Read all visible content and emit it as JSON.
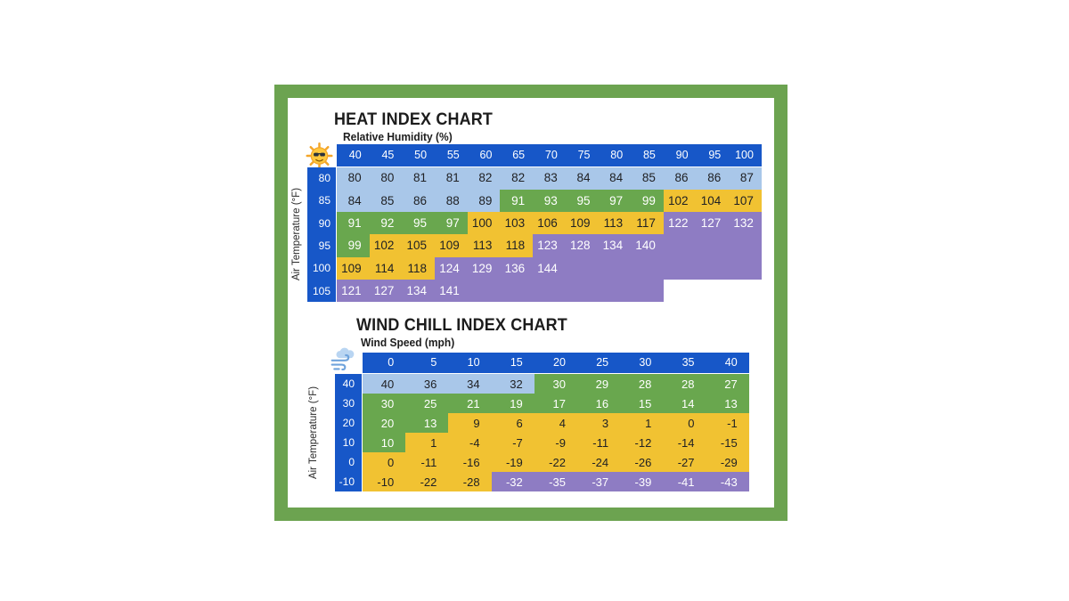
{
  "frame": {
    "color": "#6CA350"
  },
  "colors": {
    "header_blue": "#1757C8",
    "light_blue": "#A9C7E9",
    "green": "#69A74E",
    "yellow": "#F1C232",
    "purple": "#8E7CC3",
    "text_dark": "#202124",
    "text_light": "#FFFFFF"
  },
  "heat_chart": {
    "title": "HEAT INDEX CHART",
    "subtitle": "Relative Humidity (%)",
    "y_axis_label": "Air Temperature (°F)",
    "corner_icon": "sun-with-sunglasses",
    "col_headers": [
      "40",
      "45",
      "50",
      "55",
      "60",
      "65",
      "70",
      "75",
      "80",
      "85",
      "90",
      "95",
      "100"
    ],
    "rows": [
      {
        "header": "80",
        "cells": [
          [
            "80",
            "lb"
          ],
          [
            "80",
            "lb"
          ],
          [
            "81",
            "lb"
          ],
          [
            "81",
            "lb"
          ],
          [
            "82",
            "lb"
          ],
          [
            "82",
            "lb"
          ],
          [
            "83",
            "lb"
          ],
          [
            "84",
            "lb"
          ],
          [
            "84",
            "lb"
          ],
          [
            "85",
            "lb"
          ],
          [
            "86",
            "lb"
          ],
          [
            "86",
            "lb"
          ],
          [
            "87",
            "lb"
          ]
        ]
      },
      {
        "header": "85",
        "cells": [
          [
            "84",
            "lb"
          ],
          [
            "85",
            "lb"
          ],
          [
            "86",
            "lb"
          ],
          [
            "88",
            "lb"
          ],
          [
            "89",
            "lb"
          ],
          [
            "91",
            "gr"
          ],
          [
            "93",
            "gr"
          ],
          [
            "95",
            "gr"
          ],
          [
            "97",
            "gr"
          ],
          [
            "99",
            "gr"
          ],
          [
            "102",
            "yl"
          ],
          [
            "104",
            "yl"
          ],
          [
            "107",
            "yl"
          ]
        ]
      },
      {
        "header": "90",
        "cells": [
          [
            "91",
            "gr"
          ],
          [
            "92",
            "gr"
          ],
          [
            "95",
            "gr"
          ],
          [
            "97",
            "gr"
          ],
          [
            "100",
            "yl"
          ],
          [
            "103",
            "yl"
          ],
          [
            "106",
            "yl"
          ],
          [
            "109",
            "yl"
          ],
          [
            "113",
            "yl"
          ],
          [
            "117",
            "yl"
          ],
          [
            "122",
            "pu"
          ],
          [
            "127",
            "pu"
          ],
          [
            "132",
            "pu"
          ]
        ]
      },
      {
        "header": "95",
        "cells": [
          [
            "99",
            "gr"
          ],
          [
            "102",
            "yl"
          ],
          [
            "105",
            "yl"
          ],
          [
            "109",
            "yl"
          ],
          [
            "113",
            "yl"
          ],
          [
            "118",
            "yl"
          ],
          [
            "123",
            "pu"
          ],
          [
            "128",
            "pu"
          ],
          [
            "134",
            "pu"
          ],
          [
            "140",
            "pu"
          ],
          [
            "",
            "pu"
          ],
          [
            "",
            "pu"
          ],
          [
            "",
            "pu"
          ]
        ]
      },
      {
        "header": "100",
        "cells": [
          [
            "109",
            "yl"
          ],
          [
            "114",
            "yl"
          ],
          [
            "118",
            "yl"
          ],
          [
            "124",
            "pu"
          ],
          [
            "129",
            "pu"
          ],
          [
            "136",
            "pu"
          ],
          [
            "144",
            "pu"
          ],
          [
            "",
            "pu"
          ],
          [
            "",
            "pu"
          ],
          [
            "",
            "pu"
          ],
          [
            "",
            "pu"
          ],
          [
            "",
            "pu"
          ],
          [
            "",
            "pu"
          ]
        ]
      },
      {
        "header": "105",
        "cells": [
          [
            "121",
            "pu"
          ],
          [
            "127",
            "pu"
          ],
          [
            "134",
            "pu"
          ],
          [
            "141",
            "pu"
          ],
          [
            "",
            "pu"
          ],
          [
            "",
            "pu"
          ],
          [
            "",
            "pu"
          ],
          [
            "",
            "pu"
          ],
          [
            "",
            "pu"
          ],
          [
            "",
            "pu"
          ],
          [
            "",
            "no"
          ],
          [
            "",
            "no"
          ],
          [
            "",
            "no"
          ]
        ]
      }
    ]
  },
  "wind_chart": {
    "title": "WIND CHILL INDEX CHART",
    "subtitle": "Wind Speed (mph)",
    "y_axis_label": "Air Temperature (°F)",
    "corner_icon": "wind-blowing-cloud",
    "col_headers": [
      "0",
      "5",
      "10",
      "15",
      "20",
      "25",
      "30",
      "35",
      "40"
    ],
    "rows": [
      {
        "header": "40",
        "cells": [
          [
            "40",
            "lb"
          ],
          [
            "36",
            "lb"
          ],
          [
            "34",
            "lb"
          ],
          [
            "32",
            "lb"
          ],
          [
            "30",
            "gr"
          ],
          [
            "29",
            "gr"
          ],
          [
            "28",
            "gr"
          ],
          [
            "28",
            "gr"
          ],
          [
            "27",
            "gr"
          ]
        ]
      },
      {
        "header": "30",
        "cells": [
          [
            "30",
            "gr"
          ],
          [
            "25",
            "gr"
          ],
          [
            "21",
            "gr"
          ],
          [
            "19",
            "gr"
          ],
          [
            "17",
            "gr"
          ],
          [
            "16",
            "gr"
          ],
          [
            "15",
            "gr"
          ],
          [
            "14",
            "gr"
          ],
          [
            "13",
            "gr"
          ]
        ]
      },
      {
        "header": "20",
        "cells": [
          [
            "20",
            "gr"
          ],
          [
            "13",
            "gr"
          ],
          [
            "9",
            "yl"
          ],
          [
            "6",
            "yl"
          ],
          [
            "4",
            "yl"
          ],
          [
            "3",
            "yl"
          ],
          [
            "1",
            "yl"
          ],
          [
            "0",
            "yl"
          ],
          [
            "-1",
            "yl"
          ]
        ]
      },
      {
        "header": "10",
        "cells": [
          [
            "10",
            "gr"
          ],
          [
            "1",
            "yl"
          ],
          [
            "-4",
            "yl"
          ],
          [
            "-7",
            "yl"
          ],
          [
            "-9",
            "yl"
          ],
          [
            "-11",
            "yl"
          ],
          [
            "-12",
            "yl"
          ],
          [
            "-14",
            "yl"
          ],
          [
            "-15",
            "yl"
          ]
        ]
      },
      {
        "header": "0",
        "cells": [
          [
            "0",
            "yl"
          ],
          [
            "-11",
            "yl"
          ],
          [
            "-16",
            "yl"
          ],
          [
            "-19",
            "yl"
          ],
          [
            "-22",
            "yl"
          ],
          [
            "-24",
            "yl"
          ],
          [
            "-26",
            "yl"
          ],
          [
            "-27",
            "yl"
          ],
          [
            "-29",
            "yl"
          ]
        ]
      },
      {
        "header": "-10",
        "cells": [
          [
            "-10",
            "yl"
          ],
          [
            "-22",
            "yl"
          ],
          [
            "-28",
            "yl"
          ],
          [
            "-32",
            "pu"
          ],
          [
            "-35",
            "pu"
          ],
          [
            "-37",
            "pu"
          ],
          [
            "-39",
            "pu"
          ],
          [
            "-41",
            "pu"
          ],
          [
            "-43",
            "pu"
          ]
        ]
      }
    ]
  },
  "chart_data": [
    {
      "type": "heatmap",
      "title": "HEAT INDEX CHART",
      "xlabel": "Relative Humidity (%)",
      "ylabel": "Air Temperature (°F)",
      "x": [
        40,
        45,
        50,
        55,
        60,
        65,
        70,
        75,
        80,
        85,
        90,
        95,
        100
      ],
      "y": [
        80,
        85,
        90,
        95,
        100,
        105
      ],
      "values": [
        [
          80,
          80,
          81,
          81,
          82,
          82,
          83,
          84,
          84,
          85,
          86,
          86,
          87
        ],
        [
          84,
          85,
          86,
          88,
          89,
          91,
          93,
          95,
          97,
          99,
          102,
          104,
          107
        ],
        [
          91,
          92,
          95,
          97,
          100,
          103,
          106,
          109,
          113,
          117,
          122,
          127,
          132
        ],
        [
          99,
          102,
          105,
          109,
          113,
          118,
          123,
          128,
          134,
          140,
          null,
          null,
          null
        ],
        [
          109,
          114,
          118,
          124,
          129,
          136,
          144,
          null,
          null,
          null,
          null,
          null,
          null
        ],
        [
          121,
          127,
          134,
          141,
          null,
          null,
          null,
          null,
          null,
          null,
          null,
          null,
          null
        ]
      ],
      "grid": false,
      "legend": false
    },
    {
      "type": "heatmap",
      "title": "WIND CHILL INDEX CHART",
      "xlabel": "Wind Speed (mph)",
      "ylabel": "Air Temperature (°F)",
      "x": [
        0,
        5,
        10,
        15,
        20,
        25,
        30,
        35,
        40
      ],
      "y": [
        40,
        30,
        20,
        10,
        0,
        -10
      ],
      "values": [
        [
          40,
          36,
          34,
          32,
          30,
          29,
          28,
          28,
          27
        ],
        [
          30,
          25,
          21,
          19,
          17,
          16,
          15,
          14,
          13
        ],
        [
          20,
          13,
          9,
          6,
          4,
          3,
          1,
          0,
          -1
        ],
        [
          10,
          1,
          -4,
          -7,
          -9,
          -11,
          -12,
          -14,
          -15
        ],
        [
          0,
          -11,
          -16,
          -19,
          -22,
          -24,
          -26,
          -27,
          -29
        ],
        [
          -10,
          -22,
          -28,
          -32,
          -35,
          -37,
          -39,
          -41,
          -43
        ]
      ],
      "grid": false,
      "legend": false
    }
  ]
}
